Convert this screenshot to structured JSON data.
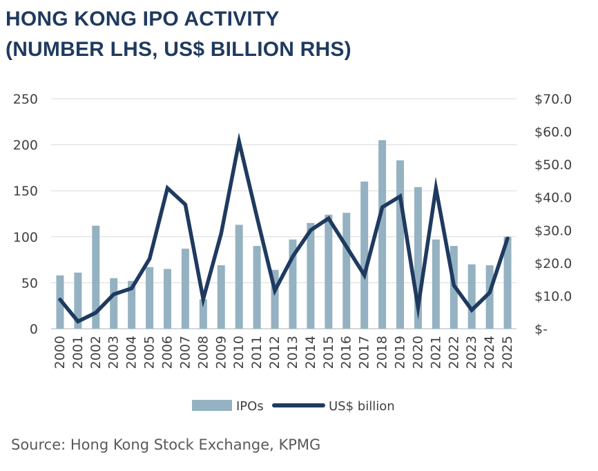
{
  "title_line1": "HONG KONG IPO ACTIVITY",
  "title_line2": "(NUMBER LHS, US$ BILLION RHS)",
  "source": "Source: Hong Kong Stock Exchange, KPMG",
  "colors": {
    "bars": "#94b2c1",
    "line": "#1f3a5f",
    "grid": "#d9d9d9",
    "axis": "#bfbfbf",
    "text": "#404040"
  },
  "chart_data": {
    "type": "bar",
    "categories": [
      "2000",
      "2001",
      "2002",
      "2003",
      "2004",
      "2005",
      "2006",
      "2007",
      "2008",
      "2009",
      "2010",
      "2011",
      "2012",
      "2013",
      "2014",
      "2015",
      "2016",
      "2017",
      "2018",
      "2019",
      "2020",
      "2021",
      "2022",
      "2023",
      "2024",
      "2025"
    ],
    "series": [
      {
        "name": "IPOs",
        "type": "bar",
        "axis": "left",
        "values": [
          58,
          61,
          112,
          55,
          52,
          67,
          65,
          87,
          32,
          69,
          113,
          90,
          64,
          97,
          115,
          124,
          126,
          160,
          205,
          183,
          154,
          97,
          90,
          70,
          69,
          100
        ]
      },
      {
        "name": "US$ billion",
        "type": "line",
        "axis": "right",
        "values": [
          8.9,
          2.2,
          4.9,
          10.5,
          12.3,
          21.3,
          42.8,
          37.8,
          9.0,
          29.0,
          57.0,
          34.0,
          11.6,
          22.0,
          30.0,
          33.6,
          25.0,
          16.3,
          37.0,
          40.3,
          6.5,
          42.8,
          13.2,
          5.7,
          11.0,
          27.5
        ]
      }
    ],
    "ylim_left": [
      0,
      250
    ],
    "yticks_left": [
      "0",
      "50",
      "100",
      "150",
      "200",
      "250"
    ],
    "ylim_right": [
      0,
      70
    ],
    "yticks_right": [
      "$-",
      "$10.0",
      "$20.0",
      "$30.0",
      "$40.0",
      "$50.0",
      "$60.0",
      "$70.0"
    ],
    "grid": true,
    "legend_position": "bottom"
  }
}
